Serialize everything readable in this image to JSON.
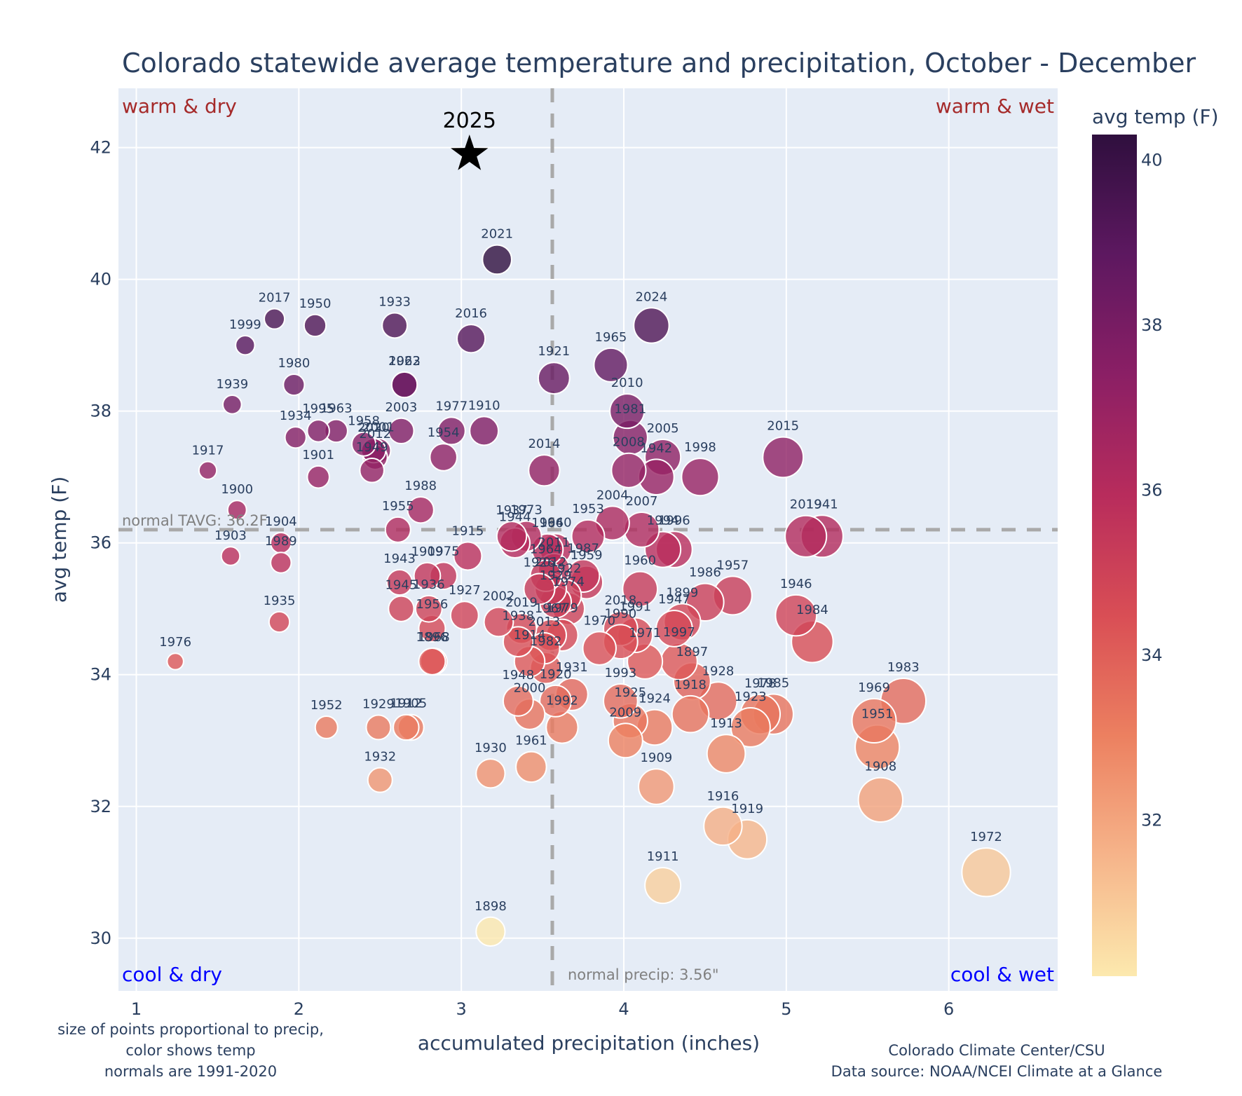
{
  "chart_data": {
    "type": "scatter",
    "title": "Colorado statewide average temperature and precipitation, October - December",
    "xlabel": "accumulated precipitation (inches)",
    "ylabel": "avg temp (F)",
    "xlim": [
      0.89,
      6.67
    ],
    "ylim": [
      29.2,
      42.9
    ],
    "xticks": [
      1,
      2,
      3,
      4,
      5,
      6
    ],
    "yticks": [
      30,
      32,
      34,
      36,
      38,
      40,
      42
    ],
    "grid": true,
    "normals": {
      "precip": 3.56,
      "tavg": 36.2,
      "precip_label": "normal precip: 3.56\"",
      "tavg_label": "normal TAVG: 36.2F"
    },
    "quadrant_labels": {
      "top_left": "warm & dry",
      "top_right": "warm & wet",
      "bottom_left": "cool & dry",
      "bottom_right": "cool & wet"
    },
    "colorbar": {
      "title": "avg temp (F)",
      "ticks": [
        32,
        34,
        36,
        38,
        40
      ],
      "range": [
        30.1,
        40.3
      ],
      "colorscale": [
        "#fce9ae",
        "#f6b48a",
        "#ec8060",
        "#d94e55",
        "#b82c5c",
        "#8b1f65",
        "#5d1860",
        "#2f0f3e"
      ]
    },
    "highlight": {
      "year": "2025",
      "precip": 3.05,
      "temp": 41.9
    },
    "points": [
      {
        "year": "2021",
        "precip": 3.22,
        "temp": 40.3
      },
      {
        "year": "2017",
        "precip": 1.85,
        "temp": 39.4
      },
      {
        "year": "1950",
        "precip": 2.1,
        "temp": 39.3
      },
      {
        "year": "1933",
        "precip": 2.59,
        "temp": 39.3
      },
      {
        "year": "2024",
        "precip": 4.17,
        "temp": 39.3
      },
      {
        "year": "2016",
        "precip": 3.06,
        "temp": 39.1
      },
      {
        "year": "1999",
        "precip": 1.67,
        "temp": 39.0
      },
      {
        "year": "1965",
        "precip": 3.92,
        "temp": 38.7
      },
      {
        "year": "1921",
        "precip": 3.57,
        "temp": 38.5
      },
      {
        "year": "1980",
        "precip": 1.97,
        "temp": 38.4
      },
      {
        "year": "1962",
        "precip": 2.65,
        "temp": 38.4
      },
      {
        "year": "2023",
        "precip": 2.65,
        "temp": 38.4
      },
      {
        "year": "1939",
        "precip": 1.59,
        "temp": 38.1
      },
      {
        "year": "2010",
        "precip": 4.02,
        "temp": 38.0
      },
      {
        "year": "1910",
        "precip": 3.14,
        "temp": 37.7
      },
      {
        "year": "1977",
        "precip": 2.94,
        "temp": 37.7
      },
      {
        "year": "2003",
        "precip": 2.63,
        "temp": 37.7
      },
      {
        "year": "1995",
        "precip": 2.12,
        "temp": 37.7
      },
      {
        "year": "1963",
        "precip": 2.23,
        "temp": 37.7
      },
      {
        "year": "1934",
        "precip": 1.98,
        "temp": 37.6
      },
      {
        "year": "1981",
        "precip": 4.04,
        "temp": 37.6
      },
      {
        "year": "1958",
        "precip": 2.4,
        "temp": 37.5
      },
      {
        "year": "2020",
        "precip": 2.46,
        "temp": 37.4
      },
      {
        "year": "2001",
        "precip": 2.49,
        "temp": 37.4
      },
      {
        "year": "2012",
        "precip": 2.47,
        "temp": 37.3
      },
      {
        "year": "2005",
        "precip": 4.24,
        "temp": 37.3
      },
      {
        "year": "1954",
        "precip": 2.89,
        "temp": 37.3
      },
      {
        "year": "2015",
        "precip": 4.98,
        "temp": 37.3
      },
      {
        "year": "1949",
        "precip": 2.45,
        "temp": 37.1
      },
      {
        "year": "2008",
        "precip": 4.03,
        "temp": 37.1
      },
      {
        "year": "2014",
        "precip": 3.51,
        "temp": 37.1
      },
      {
        "year": "1917",
        "precip": 1.44,
        "temp": 37.1
      },
      {
        "year": "1942",
        "precip": 4.2,
        "temp": 37.0
      },
      {
        "year": "1998",
        "precip": 4.47,
        "temp": 37.0
      },
      {
        "year": "1901",
        "precip": 2.12,
        "temp": 37.0
      },
      {
        "year": "1988",
        "precip": 2.75,
        "temp": 36.5
      },
      {
        "year": "1900",
        "precip": 1.62,
        "temp": 36.5
      },
      {
        "year": "2004",
        "precip": 3.93,
        "temp": 36.3
      },
      {
        "year": "1955",
        "precip": 2.61,
        "temp": 36.2
      },
      {
        "year": "2007",
        "precip": 4.11,
        "temp": 36.2
      },
      {
        "year": "1937",
        "precip": 3.31,
        "temp": 36.1
      },
      {
        "year": "1973",
        "precip": 3.4,
        "temp": 36.1
      },
      {
        "year": "1953",
        "precip": 3.78,
        "temp": 36.1
      },
      {
        "year": "2019b",
        "precip": 5.12,
        "temp": 36.1
      },
      {
        "year": "1941",
        "precip": 5.22,
        "temp": 36.1
      },
      {
        "year": "1944",
        "precip": 3.33,
        "temp": 36.0
      },
      {
        "year": "1904",
        "precip": 1.89,
        "temp": 36.0
      },
      {
        "year": "1966",
        "precip": 3.53,
        "temp": 35.9
      },
      {
        "year": "1940",
        "precip": 3.58,
        "temp": 35.9
      },
      {
        "year": "1994",
        "precip": 4.24,
        "temp": 35.9
      },
      {
        "year": "1996",
        "precip": 4.31,
        "temp": 35.9
      },
      {
        "year": "1915",
        "precip": 3.04,
        "temp": 35.8
      },
      {
        "year": "1903",
        "precip": 1.58,
        "temp": 35.8
      },
      {
        "year": "1989",
        "precip": 1.89,
        "temp": 35.7
      },
      {
        "year": "2011",
        "precip": 3.57,
        "temp": 35.6
      },
      {
        "year": "1964",
        "precip": 3.52,
        "temp": 35.5
      },
      {
        "year": "1987",
        "precip": 3.75,
        "temp": 35.5
      },
      {
        "year": "1959",
        "precip": 3.77,
        "temp": 35.4
      },
      {
        "year": "1909",
        "precip": 2.79,
        "temp": 35.5
      },
      {
        "year": "1975",
        "precip": 2.89,
        "temp": 35.5
      },
      {
        "year": "1943",
        "precip": 2.62,
        "temp": 35.4
      },
      {
        "year": "1922",
        "precip": 3.64,
        "temp": 35.2
      },
      {
        "year": "1926",
        "precip": 3.48,
        "temp": 35.3
      },
      {
        "year": "2012b",
        "precip": 3.55,
        "temp": 35.3
      },
      {
        "year": "1929b",
        "precip": 3.58,
        "temp": 35.1
      },
      {
        "year": "1974",
        "precip": 3.66,
        "temp": 35.0
      },
      {
        "year": "1960",
        "precip": 4.1,
        "temp": 35.3
      },
      {
        "year": "1957",
        "precip": 4.67,
        "temp": 35.2
      },
      {
        "year": "1986",
        "precip": 4.5,
        "temp": 35.1
      },
      {
        "year": "1945",
        "precip": 2.63,
        "temp": 35.0
      },
      {
        "year": "1936",
        "precip": 2.8,
        "temp": 35.0
      },
      {
        "year": "1956",
        "precip": 2.82,
        "temp": 34.7
      },
      {
        "year": "1927",
        "precip": 3.02,
        "temp": 34.9
      },
      {
        "year": "1946",
        "precip": 5.06,
        "temp": 34.9
      },
      {
        "year": "2002",
        "precip": 3.23,
        "temp": 34.8
      },
      {
        "year": "1899",
        "precip": 4.36,
        "temp": 34.8
      },
      {
        "year": "1947",
        "precip": 4.31,
        "temp": 34.7
      },
      {
        "year": "2018",
        "precip": 3.98,
        "temp": 34.7
      },
      {
        "year": "1991",
        "precip": 4.07,
        "temp": 34.6
      },
      {
        "year": "2019",
        "precip": 3.37,
        "temp": 34.7
      },
      {
        "year": "1967",
        "precip": 3.55,
        "temp": 34.6
      },
      {
        "year": "1979",
        "precip": 3.62,
        "temp": 34.6
      },
      {
        "year": "1938",
        "precip": 3.35,
        "temp": 34.5
      },
      {
        "year": "2013",
        "precip": 3.51,
        "temp": 34.4
      },
      {
        "year": "1984",
        "precip": 5.16,
        "temp": 34.5
      },
      {
        "year": "1970",
        "precip": 3.85,
        "temp": 34.4
      },
      {
        "year": "1990",
        "precip": 3.98,
        "temp": 34.5
      },
      {
        "year": "1971",
        "precip": 4.13,
        "temp": 34.2
      },
      {
        "year": "1997",
        "precip": 4.34,
        "temp": 34.2
      },
      {
        "year": "1914",
        "precip": 3.42,
        "temp": 34.2
      },
      {
        "year": "1982",
        "precip": 3.52,
        "temp": 34.1
      },
      {
        "year": "1896",
        "precip": 2.82,
        "temp": 34.2
      },
      {
        "year": "1968",
        "precip": 2.83,
        "temp": 34.2
      },
      {
        "year": "1976",
        "precip": 1.24,
        "temp": 34.2
      },
      {
        "year": "1935",
        "precip": 1.88,
        "temp": 34.8
      },
      {
        "year": "1897",
        "precip": 4.42,
        "temp": 33.9
      },
      {
        "year": "1928",
        "precip": 4.58,
        "temp": 33.6
      },
      {
        "year": "1931",
        "precip": 3.68,
        "temp": 33.7
      },
      {
        "year": "1920",
        "precip": 3.58,
        "temp": 33.6
      },
      {
        "year": "1948",
        "precip": 3.35,
        "temp": 33.6
      },
      {
        "year": "1993",
        "precip": 3.98,
        "temp": 33.6
      },
      {
        "year": "2000",
        "precip": 3.42,
        "temp": 33.4
      },
      {
        "year": "1925",
        "precip": 4.04,
        "temp": 33.3
      },
      {
        "year": "1924",
        "precip": 4.19,
        "temp": 33.2
      },
      {
        "year": "1918",
        "precip": 4.41,
        "temp": 33.4
      },
      {
        "year": "1978",
        "precip": 4.84,
        "temp": 33.4
      },
      {
        "year": "1985",
        "precip": 4.92,
        "temp": 33.4
      },
      {
        "year": "1923",
        "precip": 4.78,
        "temp": 33.2
      },
      {
        "year": "1992",
        "precip": 3.62,
        "temp": 33.2
      },
      {
        "year": "2009",
        "precip": 4.01,
        "temp": 33.0
      },
      {
        "year": "1913",
        "precip": 4.63,
        "temp": 32.8
      },
      {
        "year": "1983",
        "precip": 5.72,
        "temp": 33.6
      },
      {
        "year": "1969",
        "precip": 5.54,
        "temp": 33.3
      },
      {
        "year": "1951",
        "precip": 5.56,
        "temp": 32.9
      },
      {
        "year": "1952",
        "precip": 2.17,
        "temp": 33.2
      },
      {
        "year": "1929",
        "precip": 2.49,
        "temp": 33.2
      },
      {
        "year": "1912",
        "precip": 2.66,
        "temp": 33.2
      },
      {
        "year": "1905",
        "precip": 2.69,
        "temp": 33.2
      },
      {
        "year": "1930",
        "precip": 3.18,
        "temp": 32.5
      },
      {
        "year": "1961",
        "precip": 3.43,
        "temp": 32.6
      },
      {
        "year": "1932",
        "precip": 2.5,
        "temp": 32.4
      },
      {
        "year": "1909b",
        "precip": 4.2,
        "temp": 32.3
      },
      {
        "year": "1908",
        "precip": 5.58,
        "temp": 32.1
      },
      {
        "year": "1916",
        "precip": 4.61,
        "temp": 31.7
      },
      {
        "year": "1919",
        "precip": 4.76,
        "temp": 31.5
      },
      {
        "year": "1972",
        "precip": 6.23,
        "temp": 31.0
      },
      {
        "year": "1911",
        "precip": 4.24,
        "temp": 30.8
      },
      {
        "year": "1898",
        "precip": 3.18,
        "temp": 30.1
      }
    ],
    "footnote_left": [
      "size of points proportional to precip,",
      "color shows temp",
      "normals are 1991-2020"
    ],
    "footnote_right": [
      "Colorado Climate Center/CSU",
      "Data source: NOAA/NCEI Climate at a Glance"
    ]
  }
}
